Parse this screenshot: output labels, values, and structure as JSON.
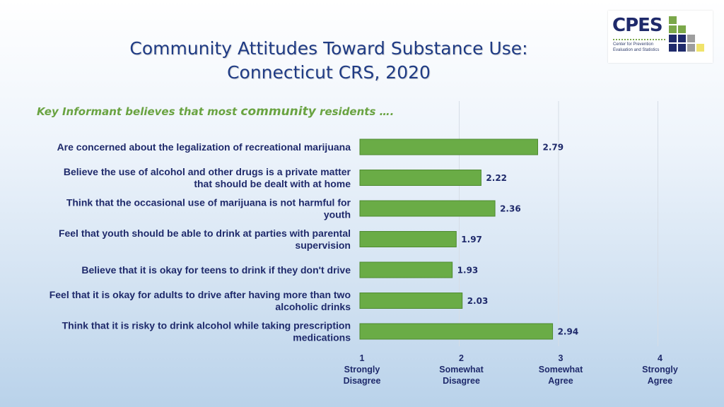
{
  "title_lines": [
    "Community Attitudes Toward Substance Use:",
    "Connecticut CRS, 2020"
  ],
  "subtitle": {
    "prefix": "Key Informant believes that most ",
    "emphasis": "community",
    "suffix": " residents …."
  },
  "logo": {
    "word": "CPES",
    "sub_lines": [
      "Center for Prevention",
      "Evaluation and Statistics"
    ],
    "colors": [
      "#7ba84a",
      "#1f2a6b",
      "#9e9e9e",
      "#f0e36b"
    ]
  },
  "chart_data": {
    "type": "bar",
    "orientation": "horizontal",
    "categories": [
      [
        "Are concerned about the legalization of recreational marijuana"
      ],
      [
        "Believe the use of alcohol and other drugs is a private matter",
        "that should be dealt with at home"
      ],
      [
        "Think that the occasional use of marijuana is not harmful for",
        "youth"
      ],
      [
        "Feel that youth should be able to drink at parties with parental",
        "supervision"
      ],
      [
        "Believe that it is okay for teens to drink if they don't drive"
      ],
      [
        "Feel that it is okay for adults to drive after having more than two",
        "alcoholic drinks"
      ],
      [
        "Think that it is risky to drink alcohol while taking prescription",
        "medications"
      ]
    ],
    "values": [
      2.79,
      2.22,
      2.36,
      1.97,
      1.93,
      2.03,
      2.94
    ],
    "value_labels": [
      "2.79",
      "2.22",
      "2.36",
      "1.97",
      "1.93",
      "2.03",
      "2.94"
    ],
    "xlim": [
      1,
      4
    ],
    "x_ticks": [
      {
        "value": 1,
        "lines": [
          "1",
          "Strongly",
          "Disagree"
        ]
      },
      {
        "value": 2,
        "lines": [
          "2",
          "Somewhat",
          "Disagree"
        ]
      },
      {
        "value": 3,
        "lines": [
          "3",
          "Somewhat",
          "Agree"
        ]
      },
      {
        "value": 4,
        "lines": [
          "4",
          "Strongly",
          "Agree"
        ]
      }
    ],
    "grid": true,
    "bar_color": "#6aac46",
    "bar_border": "#4e8a30",
    "text_color": "#1f2a6b"
  }
}
